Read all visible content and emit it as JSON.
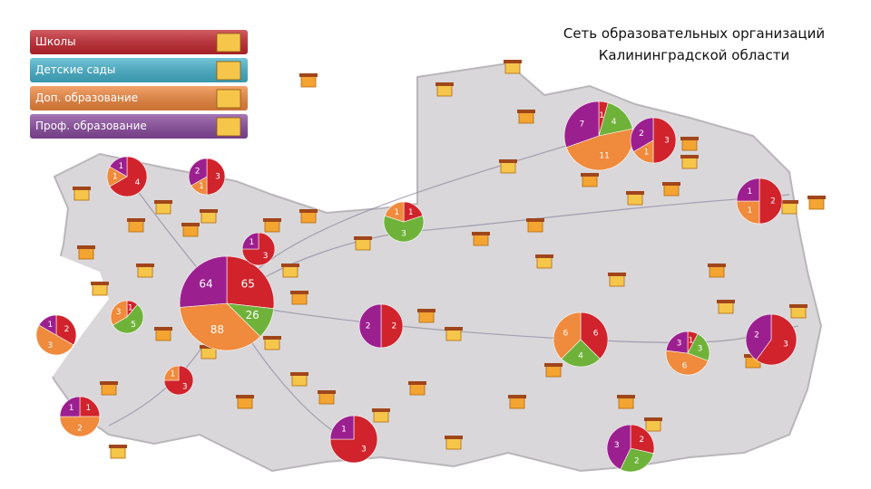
{
  "title_lines": [
    "Сеть образовательных организаций",
    "Калининградской области"
  ],
  "legend": [
    {
      "label": "Школы",
      "color": "#c4262e"
    },
    {
      "label": "Детские сады",
      "color": "#45b3cc"
    },
    {
      "label": "Доп. образование",
      "color": "#f0863c"
    },
    {
      "label": "Проф. образование",
      "color": "#8a4a9e"
    }
  ],
  "pie_colors": [
    "#d0232c",
    "#6fb23a",
    "#f08a3c",
    "#9c1f8f"
  ],
  "pies": [
    {
      "values": [
        65,
        26,
        88,
        64
      ]
    },
    {
      "values": [
        1,
        4,
        11,
        7
      ]
    },
    {
      "values": [
        3,
        0,
        1,
        2
      ]
    },
    {
      "values": [
        4,
        0,
        1,
        1
      ]
    },
    {
      "values": [
        3,
        0,
        1,
        2
      ]
    },
    {
      "values": [
        1,
        3,
        1,
        0
      ]
    },
    {
      "values": [
        3,
        0,
        0,
        1
      ]
    },
    {
      "values": [
        1,
        5,
        3,
        0
      ]
    },
    {
      "values": [
        2,
        0,
        3,
        1
      ]
    },
    {
      "values": [
        2,
        0,
        0,
        2
      ]
    },
    {
      "values": [
        6,
        4,
        6,
        0
      ]
    },
    {
      "values": [
        1,
        3,
        6,
        3
      ]
    },
    {
      "values": [
        3,
        0,
        0,
        2
      ]
    },
    {
      "values": [
        2,
        0,
        1,
        1
      ]
    },
    {
      "values": [
        3,
        0,
        1,
        0
      ]
    },
    {
      "values": [
        1,
        0,
        2,
        1
      ]
    },
    {
      "values": [
        3,
        0,
        0,
        1
      ]
    },
    {
      "values": [
        2,
        2,
        0,
        3
      ]
    }
  ]
}
